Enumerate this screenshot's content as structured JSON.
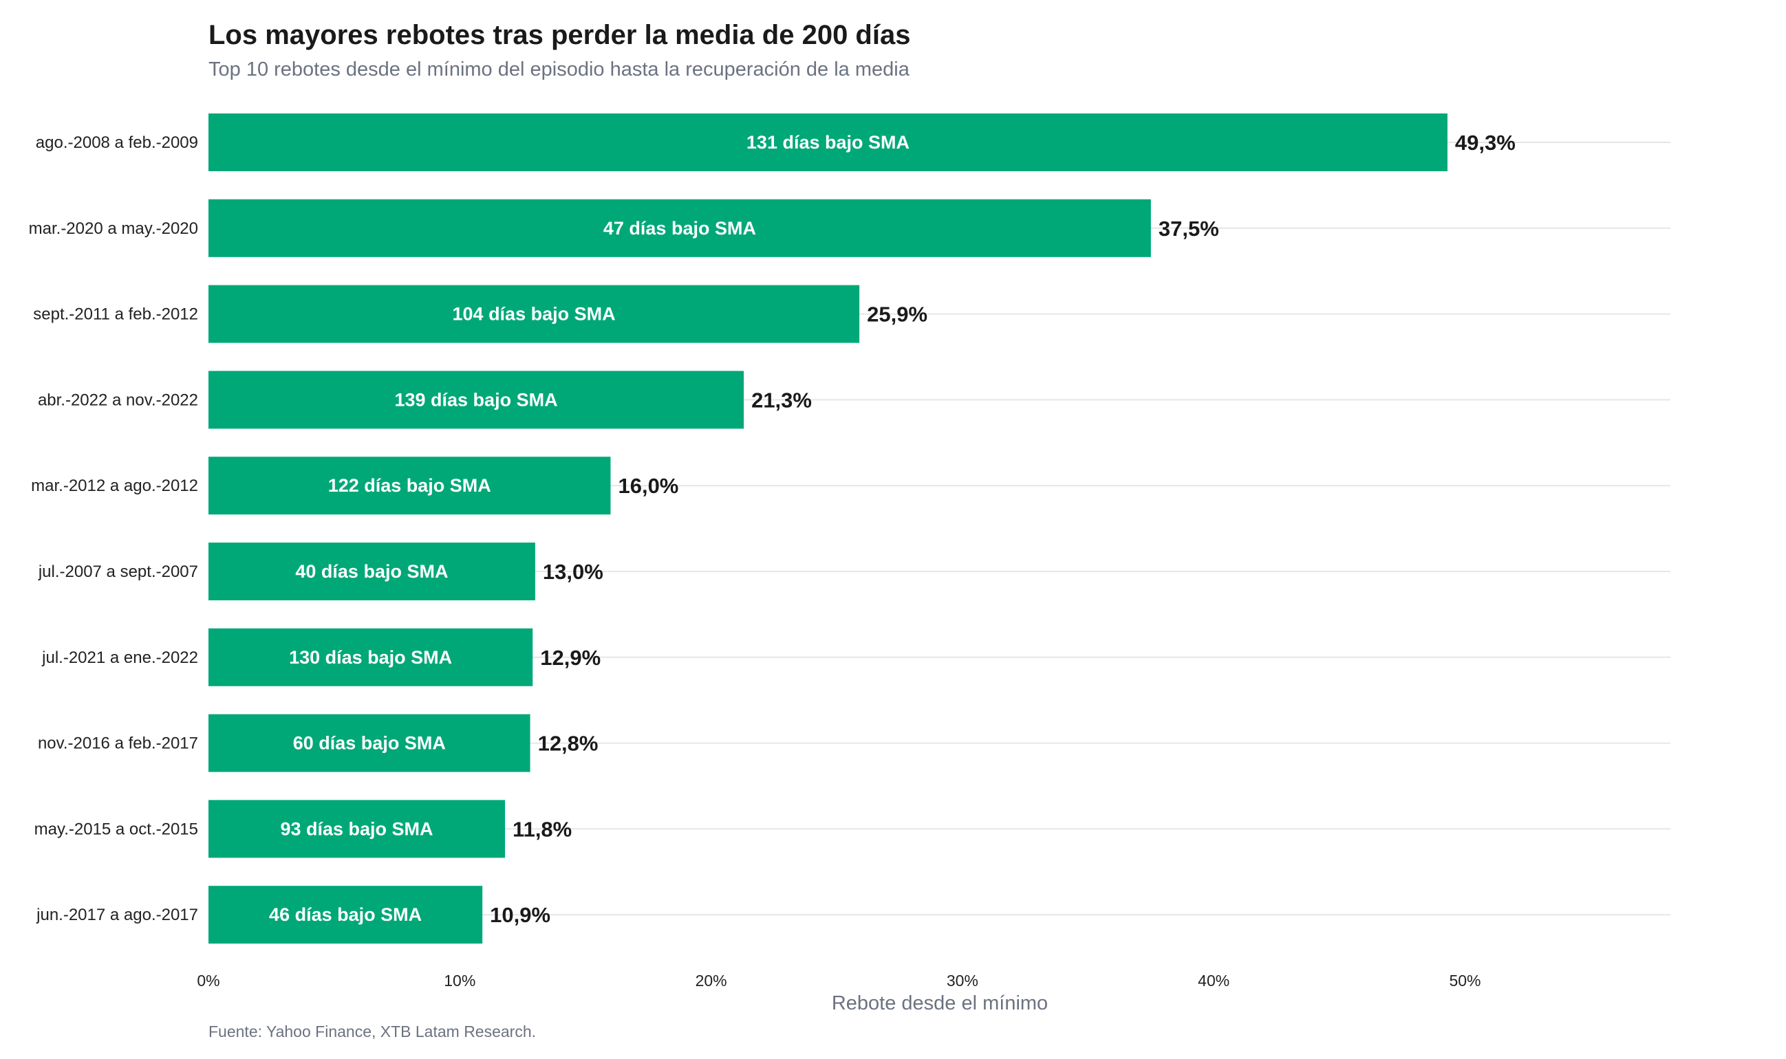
{
  "chart_data": {
    "type": "bar",
    "orientation": "horizontal",
    "title": "Los mayores rebotes tras perder la media de 200 días",
    "subtitle": "Top 10 rebotes desde el mínimo del episodio hasta la recuperación de la media",
    "xlabel": "Rebote desde el mínimo",
    "ylabel": "",
    "xlim": [
      0,
      58
    ],
    "xticks": [
      0,
      10,
      20,
      30,
      40,
      50
    ],
    "xtick_labels": [
      "0%",
      "10%",
      "20%",
      "30%",
      "40%",
      "50%"
    ],
    "grid": "horizontal",
    "bar_color": "#00A878",
    "source": "Fuente: Yahoo Finance, XTB Latam Research.",
    "categories": [
      "ago.-2008 a feb.-2009",
      "mar.-2020 a may.-2020",
      "sept.-2011 a feb.-2012",
      "abr.-2022 a nov.-2022",
      "mar.-2012 a ago.-2012",
      "jul.-2007 a sept.-2007",
      "jul.-2021 a ene.-2022",
      "nov.-2016 a feb.-2017",
      "may.-2015 a oct.-2015",
      "jun.-2017 a ago.-2017"
    ],
    "values": [
      49.3,
      37.5,
      25.9,
      21.3,
      16.0,
      13.0,
      12.9,
      12.8,
      11.8,
      10.9
    ],
    "value_labels": [
      "49,3%",
      "37,5%",
      "25,9%",
      "21,3%",
      "16,0%",
      "13,0%",
      "12,9%",
      "12,8%",
      "11,8%",
      "10,9%"
    ],
    "bar_labels": [
      "131 días bajo SMA",
      "47 días bajo SMA",
      "104 días bajo SMA",
      "139 días bajo SMA",
      "122 días bajo SMA",
      "40 días bajo SMA",
      "130 días bajo SMA",
      "60 días bajo SMA",
      "93 días bajo SMA",
      "46 días bajo SMA"
    ]
  }
}
